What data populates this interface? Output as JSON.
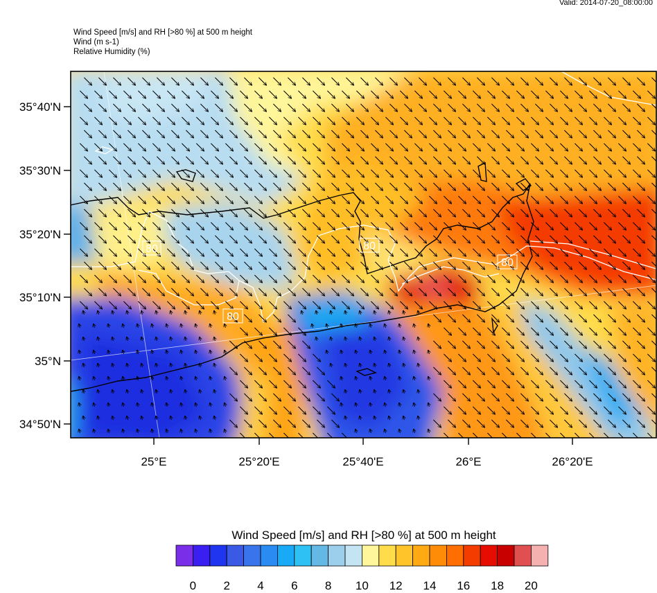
{
  "valid_time": "Valid: 2014-07-20_08:00:00",
  "header": {
    "line1": "Wind Speed [m/s] and RH [>80 %] at 500 m height",
    "line2": "Wind   (m s-1)",
    "line3": "Relative Humidity   (%)"
  },
  "map": {
    "lat_labels": [
      "35°40'N",
      "35°30'N",
      "35°20'N",
      "35°10'N",
      "35°N",
      "34°50'N"
    ],
    "lon_labels": [
      "25°E",
      "25°20'E",
      "25°40'E",
      "26°E",
      "26°20'E"
    ],
    "contour_labels": [
      "80",
      "80",
      "80",
      "80"
    ],
    "wind_arrow_direction": "south-east",
    "rh_contour_color": "#ffffff"
  },
  "colorbar": {
    "title": "Wind Speed [m/s] and RH [>80 %] at 500 m height",
    "labels": [
      "0",
      "2",
      "4",
      "6",
      "8",
      "10",
      "12",
      "14",
      "16",
      "18",
      "20"
    ],
    "colors": [
      "#7a2ee8",
      "#3a1ff0",
      "#1f35f0",
      "#3a5ae6",
      "#3a74ec",
      "#2a8cf2",
      "#18aaf6",
      "#2ec2f4",
      "#64b8e6",
      "#9ccfeb",
      "#c4e3f3",
      "#fff59a",
      "#ffdc4a",
      "#ffc42a",
      "#ffaa12",
      "#ff8c06",
      "#ff6e00",
      "#f53c00",
      "#e60d00",
      "#c80000",
      "#e05050",
      "#f5b0b0"
    ]
  }
}
